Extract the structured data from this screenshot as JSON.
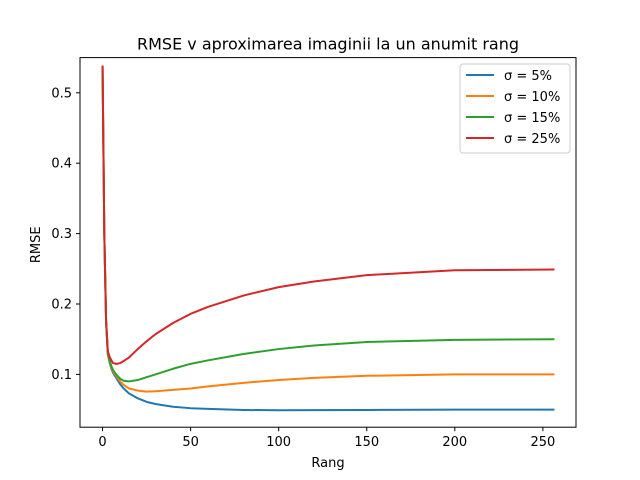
{
  "chart_data": {
    "type": "line",
    "title": "RMSE v aproximarea imaginii la un anumit rang",
    "xlabel": "Rang",
    "ylabel": "RMSE",
    "xlim": [
      -12.8,
      268.8
    ],
    "ylim": [
      0.025,
      0.55
    ],
    "xticks": [
      0,
      50,
      100,
      150,
      200,
      250
    ],
    "yticks": [
      0.1,
      0.2,
      0.3,
      0.4,
      0.5
    ],
    "ytick_labels": [
      "0.1",
      "0.2",
      "0.3",
      "0.4",
      "0.5"
    ],
    "grid": false,
    "legend_position": "top-right",
    "series": [
      {
        "name": "σ = 5%",
        "color": "#1f77b4",
        "x": [
          0,
          1,
          2,
          3,
          4,
          5,
          6,
          8,
          10,
          12,
          15,
          20,
          25,
          30,
          40,
          50,
          60,
          80,
          100,
          120,
          150,
          200,
          256
        ],
        "values": [
          0.537,
          0.3,
          0.175,
          0.128,
          0.117,
          0.108,
          0.102,
          0.094,
          0.086,
          0.08,
          0.073,
          0.066,
          0.061,
          0.058,
          0.054,
          0.052,
          0.051,
          0.0495,
          0.049,
          0.0492,
          0.0495,
          0.05,
          0.05
        ]
      },
      {
        "name": "σ = 10%",
        "color": "#ff7f0e",
        "x": [
          0,
          1,
          2,
          3,
          4,
          5,
          6,
          8,
          10,
          12,
          15,
          20,
          25,
          30,
          40,
          50,
          60,
          80,
          100,
          120,
          150,
          200,
          256
        ],
        "values": [
          0.537,
          0.3,
          0.175,
          0.129,
          0.118,
          0.11,
          0.104,
          0.097,
          0.09,
          0.085,
          0.08,
          0.077,
          0.0755,
          0.076,
          0.078,
          0.08,
          0.083,
          0.088,
          0.092,
          0.095,
          0.098,
          0.1,
          0.1
        ]
      },
      {
        "name": "σ = 15%",
        "color": "#2ca02c",
        "x": [
          0,
          1,
          2,
          3,
          4,
          5,
          6,
          8,
          10,
          12,
          15,
          20,
          25,
          30,
          40,
          50,
          60,
          80,
          100,
          120,
          150,
          200,
          256
        ],
        "values": [
          0.537,
          0.3,
          0.176,
          0.13,
          0.12,
          0.112,
          0.106,
          0.099,
          0.094,
          0.091,
          0.09,
          0.092,
          0.096,
          0.1,
          0.108,
          0.115,
          0.12,
          0.129,
          0.136,
          0.141,
          0.146,
          0.149,
          0.15
        ]
      },
      {
        "name": "σ = 25%",
        "color": "#d62728",
        "x": [
          0,
          1,
          2,
          3,
          4,
          5,
          6,
          8,
          10,
          12,
          15,
          20,
          25,
          30,
          40,
          50,
          60,
          80,
          100,
          120,
          150,
          200,
          256
        ],
        "values": [
          0.537,
          0.3,
          0.178,
          0.133,
          0.125,
          0.12,
          0.116,
          0.115,
          0.116,
          0.119,
          0.124,
          0.136,
          0.147,
          0.157,
          0.173,
          0.186,
          0.196,
          0.212,
          0.224,
          0.232,
          0.241,
          0.248,
          0.249
        ]
      }
    ]
  }
}
